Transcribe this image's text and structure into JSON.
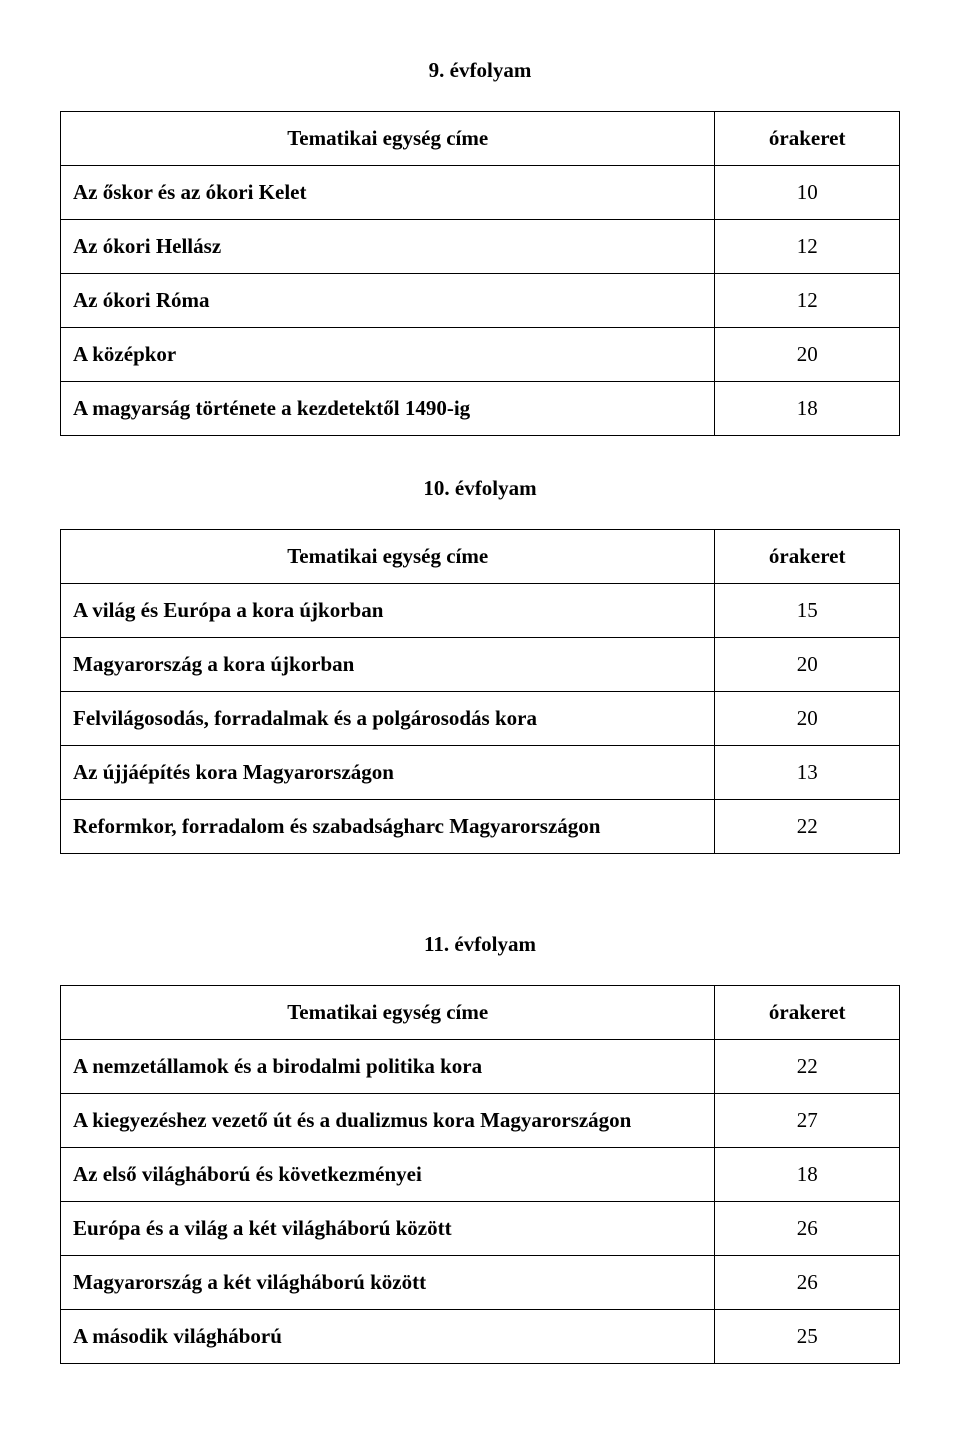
{
  "sections": [
    {
      "title": "9. évfolyam",
      "header_label": "Tematikai egység címe",
      "header_value": "órakeret",
      "rows": [
        {
          "label": "Az őskor és az ókori Kelet",
          "value": "10"
        },
        {
          "label": "Az ókori Hellász",
          "value": "12"
        },
        {
          "label": "Az ókori Róma",
          "value": "12"
        },
        {
          "label": "A középkor",
          "value": "20"
        },
        {
          "label": "A magyarság története a kezdetektől 1490-ig",
          "value": "18"
        }
      ]
    },
    {
      "title": "10. évfolyam",
      "header_label": "Tematikai egység címe",
      "header_value": "órakeret",
      "rows": [
        {
          "label": "A világ és Európa a kora újkorban",
          "value": "15"
        },
        {
          "label": "Magyarország a kora újkorban",
          "value": "20"
        },
        {
          "label": "Felvilágosodás, forradalmak és a polgárosodás kora",
          "value": "20"
        },
        {
          "label": "Az újjáépítés kora Magyarországon",
          "value": "13"
        },
        {
          "label": "Reformkor, forradalom és szabadságharc Magyarországon",
          "value": "22"
        }
      ]
    },
    {
      "title": "11. évfolyam",
      "header_label": "Tematikai egység címe",
      "header_value": "órakeret",
      "rows": [
        {
          "label": "A nemzetállamok és a birodalmi politika kora",
          "value": "22"
        },
        {
          "label": "A kiegyezéshez vezető út és a dualizmus kora Magyarországon",
          "value": "27"
        },
        {
          "label": "Az első világháború és következményei",
          "value": "18"
        },
        {
          "label": "Európa és a világ a két világháború között",
          "value": "26"
        },
        {
          "label": "Magyarország a két világháború között",
          "value": "26"
        },
        {
          "label": "A második világháború",
          "value": "25"
        }
      ]
    }
  ]
}
